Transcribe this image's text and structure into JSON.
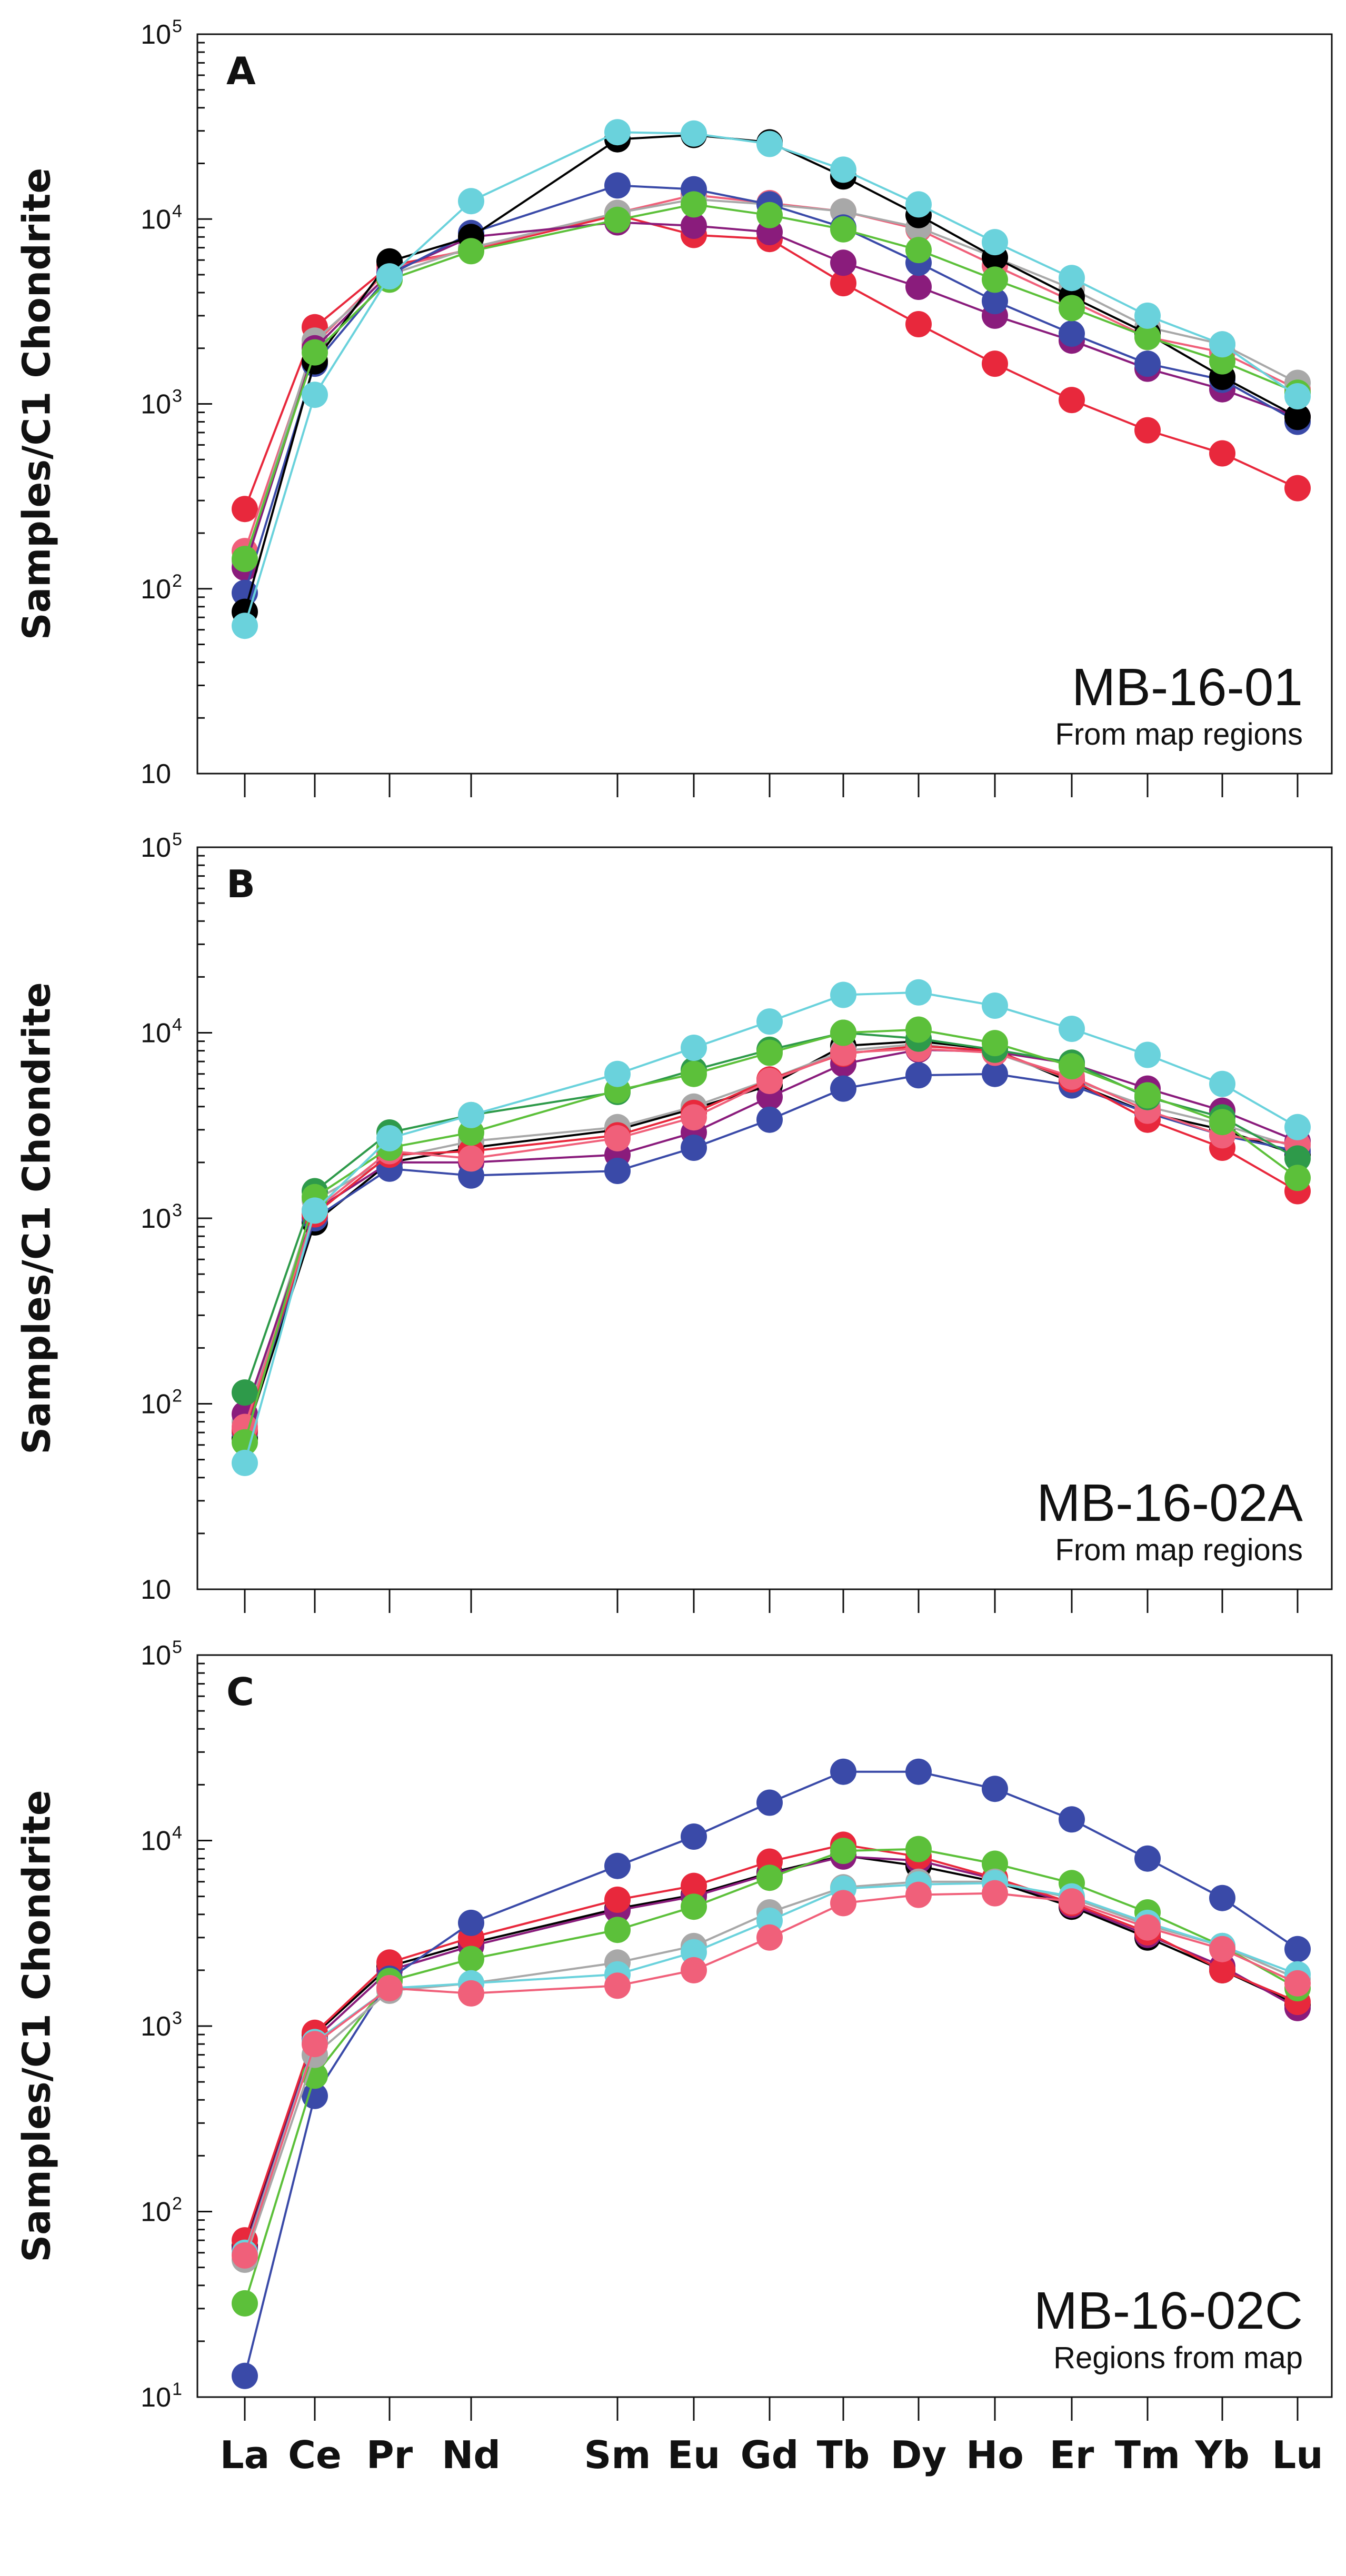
{
  "chart_data": [
    {
      "type": "line",
      "scale": "log",
      "panel_label": "A",
      "sample": "MB-16-01",
      "subtitle": "From map regions",
      "ylabel": "Samples/C1 Chondrite",
      "ylim": [
        10,
        100000
      ],
      "yticks": [
        {
          "base": "10",
          "exp": ""
        },
        {
          "base": "10",
          "exp": "2"
        },
        {
          "base": "10",
          "exp": "3"
        },
        {
          "base": "10",
          "exp": "4"
        },
        {
          "base": "10",
          "exp": "5"
        }
      ],
      "categories": [
        "La",
        "Ce",
        "Pr",
        "Nd",
        "Sm",
        "Eu",
        "Gd",
        "Tb",
        "Dy",
        "Ho",
        "Er",
        "Tm",
        "Yb",
        "Lu"
      ],
      "series": [
        {
          "name": "red",
          "color": "#e8283c",
          "values": [
            270,
            2600,
            5600,
            6800,
            10500,
            8200,
            7800,
            4500,
            2700,
            1650,
            1050,
            720,
            540,
            350
          ]
        },
        {
          "name": "pink",
          "color": "#f0607a",
          "values": [
            160,
            2100,
            5400,
            6900,
            10800,
            13500,
            12200,
            11000,
            8800,
            5600,
            3600,
            2300,
            1900,
            1200
          ]
        },
        {
          "name": "gray",
          "color": "#a8a8a8",
          "values": [
            140,
            2200,
            5000,
            7000,
            10800,
            12800,
            12000,
            11000,
            9000,
            6200,
            4200,
            2600,
            2100,
            1300
          ]
        },
        {
          "name": "purple",
          "color": "#8a1c7c",
          "values": [
            130,
            2000,
            5100,
            8000,
            9600,
            9200,
            8500,
            5800,
            4300,
            3000,
            2200,
            1550,
            1200,
            850
          ]
        },
        {
          "name": "navy",
          "color": "#3a4aa8",
          "values": [
            95,
            1650,
            5000,
            8400,
            15200,
            14500,
            12000,
            9000,
            5800,
            3600,
            2400,
            1650,
            1350,
            800
          ]
        },
        {
          "name": "black",
          "color": "#000000",
          "values": [
            75,
            1700,
            5900,
            8000,
            27000,
            28500,
            26000,
            17000,
            10500,
            6200,
            3800,
            2400,
            1400,
            850
          ]
        },
        {
          "name": "green",
          "color": "#5cc03a",
          "values": [
            145,
            1900,
            4700,
            6700,
            9900,
            12000,
            10500,
            8800,
            6800,
            4700,
            3300,
            2300,
            1700,
            1150
          ]
        },
        {
          "name": "cyan",
          "color": "#6ad2dc",
          "values": [
            63,
            1120,
            4900,
            12500,
            29500,
            29000,
            25500,
            18500,
            12000,
            7500,
            4800,
            3000,
            2100,
            1100
          ]
        }
      ]
    },
    {
      "type": "line",
      "scale": "log",
      "panel_label": "B",
      "sample": "MB-16-02A",
      "subtitle": "From map regions",
      "ylabel": "Samples/C1 Chondrite",
      "ylim": [
        10,
        100000
      ],
      "yticks": [
        {
          "base": "10",
          "exp": ""
        },
        {
          "base": "10",
          "exp": "2"
        },
        {
          "base": "10",
          "exp": "3"
        },
        {
          "base": "10",
          "exp": "4"
        },
        {
          "base": "10",
          "exp": "5"
        }
      ],
      "categories": [
        "La",
        "Ce",
        "Pr",
        "Nd",
        "Sm",
        "Eu",
        "Gd",
        "Tb",
        "Dy",
        "Ho",
        "Er",
        "Tm",
        "Yb",
        "Lu"
      ],
      "series": [
        {
          "name": "black",
          "color": "#000000",
          "values": [
            65,
            950,
            2000,
            2400,
            3000,
            3900,
            5200,
            8500,
            9000,
            8100,
            5400,
            3700,
            3000,
            2200
          ]
        },
        {
          "name": "gray",
          "color": "#a8a8a8",
          "values": [
            80,
            1250,
            2100,
            2600,
            3100,
            4000,
            5600,
            8000,
            8700,
            7800,
            5600,
            4000,
            3200,
            2400
          ]
        },
        {
          "name": "purple",
          "color": "#8a1c7c",
          "values": [
            88,
            1100,
            2000,
            2000,
            2200,
            2900,
            4500,
            6800,
            8100,
            7900,
            6800,
            5000,
            3800,
            2600
          ]
        },
        {
          "name": "navy",
          "color": "#3a4aa8",
          "values": [
            70,
            1000,
            1850,
            1700,
            1800,
            2400,
            3400,
            5000,
            5900,
            6000,
            5200,
            3700,
            2800,
            2300
          ]
        },
        {
          "name": "red",
          "color": "#e8283c",
          "values": [
            72,
            1050,
            2200,
            2300,
            2800,
            3700,
            5600,
            7700,
            8500,
            8000,
            5600,
            3400,
            2400,
            1400
          ]
        },
        {
          "name": "pink",
          "color": "#f0607a",
          "values": [
            75,
            1100,
            2300,
            2100,
            2700,
            3500,
            5500,
            7800,
            8200,
            7800,
            5800,
            3800,
            2800,
            2500
          ]
        },
        {
          "name": "darkgreen",
          "color": "#2e9a4a",
          "values": [
            115,
            1400,
            2900,
            3600,
            4800,
            6300,
            8100,
            10000,
            9300,
            8100,
            6900,
            4500,
            3500,
            2100
          ]
        },
        {
          "name": "green",
          "color": "#5cc03a",
          "values": [
            62,
            1300,
            2400,
            2900,
            4900,
            6000,
            7800,
            10000,
            10400,
            8800,
            6600,
            4600,
            3300,
            1650
          ]
        },
        {
          "name": "cyan",
          "color": "#6ad2dc",
          "values": [
            48,
            1100,
            2700,
            3600,
            6000,
            8300,
            11500,
            16000,
            16500,
            14000,
            10500,
            7600,
            5300,
            3100
          ]
        }
      ]
    },
    {
      "type": "line",
      "scale": "log",
      "panel_label": "C",
      "sample": "MB-16-02C",
      "subtitle": "Regions from map",
      "ylabel": "Samples/C1 Chondrite",
      "ylim": [
        10,
        100000
      ],
      "yticks": [
        {
          "base": "10",
          "exp": "1"
        },
        {
          "base": "10",
          "exp": "2"
        },
        {
          "base": "10",
          "exp": "3"
        },
        {
          "base": "10",
          "exp": "4"
        },
        {
          "base": "10",
          "exp": "5"
        }
      ],
      "xticks": [
        "La",
        "Ce",
        "Pr",
        "Nd",
        "Sm",
        "Eu",
        "Gd",
        "Tb",
        "Dy",
        "Ho",
        "Er",
        "Tm",
        "Yb",
        "Lu"
      ],
      "categories": [
        "La",
        "Ce",
        "Pr",
        "Nd",
        "Sm",
        "Eu",
        "Gd",
        "Tb",
        "Dy",
        "Ho",
        "Er",
        "Tm",
        "Yb",
        "Lu"
      ],
      "series": [
        {
          "name": "black",
          "color": "#000000",
          "values": [
            65,
            900,
            2100,
            2800,
            4300,
            5100,
            6700,
            8300,
            7300,
            6000,
            4400,
            3000,
            2000,
            1300
          ]
        },
        {
          "name": "purple",
          "color": "#8a1c7c",
          "values": [
            63,
            850,
            2000,
            2700,
            4200,
            5000,
            6600,
            8200,
            7800,
            6200,
            4500,
            3100,
            2100,
            1250
          ]
        },
        {
          "name": "red",
          "color": "#e8283c",
          "values": [
            70,
            920,
            2200,
            3000,
            4800,
            5700,
            7700,
            9500,
            8200,
            6300,
            4600,
            3200,
            2000,
            1350
          ]
        },
        {
          "name": "navy",
          "color": "#3a4aa8",
          "values": [
            13,
            420,
            1800,
            3600,
            7300,
            10500,
            16000,
            23500,
            23500,
            19000,
            13000,
            8000,
            4900,
            2600
          ]
        },
        {
          "name": "green",
          "color": "#5cc03a",
          "values": [
            32,
            540,
            1750,
            2300,
            3300,
            4400,
            6300,
            8800,
            9000,
            7500,
            5900,
            4100,
            2700,
            1600
          ]
        },
        {
          "name": "gray",
          "color": "#a8a8a8",
          "values": [
            55,
            700,
            1550,
            1700,
            2200,
            2700,
            4100,
            5600,
            6000,
            6000,
            4900,
            3500,
            2700,
            1800
          ]
        },
        {
          "name": "cyan",
          "color": "#6ad2dc",
          "values": [
            60,
            820,
            1600,
            1700,
            1900,
            2500,
            3700,
            5500,
            5800,
            5900,
            5000,
            3600,
            2700,
            1900
          ]
        },
        {
          "name": "pink",
          "color": "#f0607a",
          "values": [
            58,
            800,
            1600,
            1500,
            1650,
            2000,
            3000,
            4600,
            5100,
            5200,
            4700,
            3400,
            2600,
            1700
          ]
        }
      ]
    }
  ]
}
